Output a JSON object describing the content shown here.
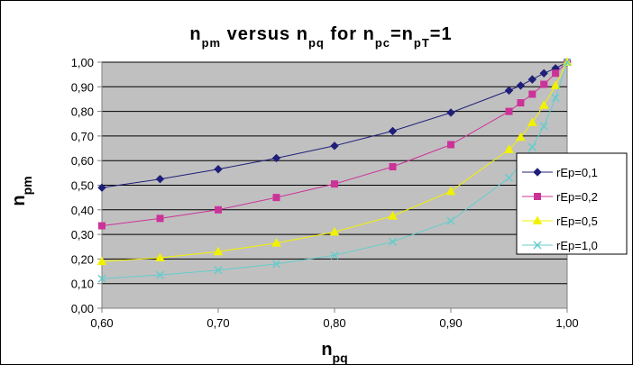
{
  "chart_data": {
    "type": "line",
    "title": {
      "parts": [
        {
          "text": "n",
          "sub": false
        },
        {
          "text": "pm",
          "sub": true
        },
        {
          "text": " versus n",
          "sub": false
        },
        {
          "text": "pq",
          "sub": true
        },
        {
          "text": " for n",
          "sub": false
        },
        {
          "text": "pc",
          "sub": true
        },
        {
          "text": "=n",
          "sub": false
        },
        {
          "text": "pT",
          "sub": true
        },
        {
          "text": "=1",
          "sub": false
        }
      ]
    },
    "xlabel": {
      "base": "n",
      "sub": "pq"
    },
    "ylabel": {
      "base": "n",
      "sub": "pm"
    },
    "xlim": [
      0.6,
      1.0
    ],
    "ylim": [
      0.0,
      1.0
    ],
    "x_ticks": [
      "0,60",
      "0,70",
      "0,80",
      "0,90",
      "1,00"
    ],
    "y_ticks": [
      "0,00",
      "0,10",
      "0,20",
      "0,30",
      "0,40",
      "0,50",
      "0,60",
      "0,70",
      "0,80",
      "0,90",
      "1,00"
    ],
    "x_tick_values": [
      0.6,
      0.7,
      0.8,
      0.9,
      1.0
    ],
    "y_tick_values": [
      0.0,
      0.1,
      0.2,
      0.3,
      0.4,
      0.5,
      0.6,
      0.7,
      0.8,
      0.9,
      1.0
    ],
    "grid": "horizontal",
    "legend_position": "right",
    "x": [
      0.6,
      0.65,
      0.7,
      0.75,
      0.8,
      0.85,
      0.9,
      0.95,
      0.96,
      0.97,
      0.98,
      0.99,
      1.0
    ],
    "series": [
      {
        "name": "rEp=0,1",
        "color": "#1f1f7a",
        "marker": "diamond",
        "values": [
          0.49,
          0.525,
          0.565,
          0.61,
          0.66,
          0.72,
          0.795,
          0.885,
          0.905,
          0.93,
          0.955,
          0.975,
          1.0
        ]
      },
      {
        "name": "rEp=0,2",
        "color": "#cc3399",
        "marker": "square",
        "values": [
          0.335,
          0.365,
          0.4,
          0.45,
          0.505,
          0.575,
          0.665,
          0.8,
          0.835,
          0.87,
          0.91,
          0.955,
          1.0
        ]
      },
      {
        "name": "rEp=0,5",
        "color": "#f2f200",
        "marker": "triangle",
        "values": [
          0.19,
          0.205,
          0.23,
          0.265,
          0.31,
          0.375,
          0.475,
          0.645,
          0.695,
          0.755,
          0.825,
          0.905,
          1.0
        ]
      },
      {
        "name": "rEp=1,0",
        "color": "#66cccc",
        "marker": "x",
        "values": [
          0.12,
          0.135,
          0.155,
          0.18,
          0.215,
          0.27,
          0.355,
          0.53,
          0.585,
          0.655,
          0.74,
          0.855,
          1.0
        ]
      }
    ]
  }
}
